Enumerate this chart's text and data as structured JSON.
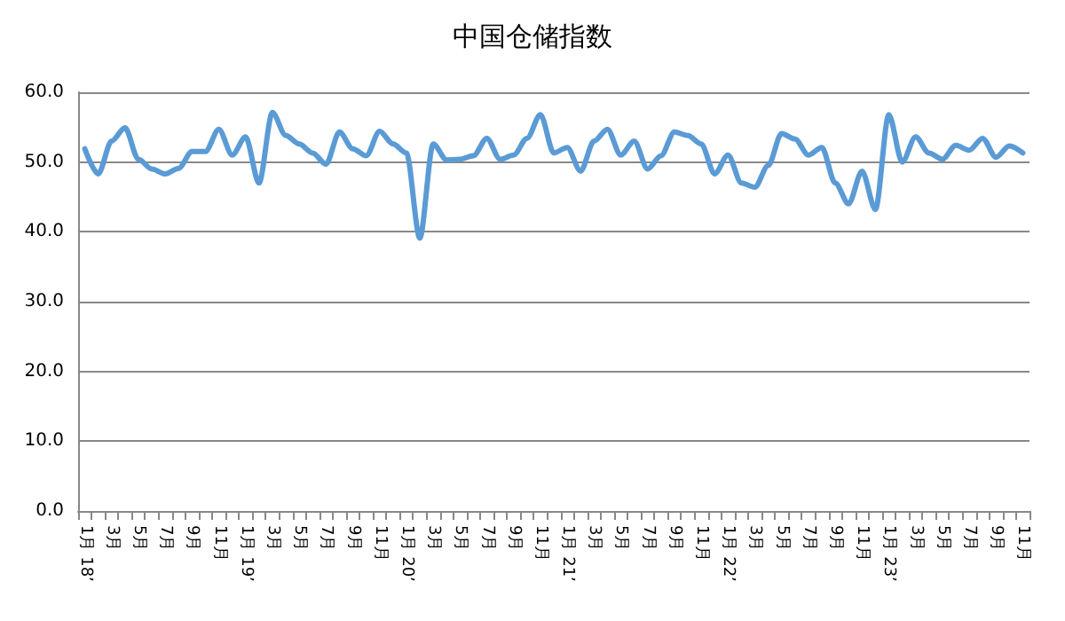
{
  "chart_data": {
    "type": "line",
    "title": "中国仓储指数",
    "categories": [
      "1月 18’",
      null,
      "3月",
      null,
      "5月",
      null,
      "7月",
      null,
      "9月",
      null,
      "11月",
      null,
      "1月 19’",
      null,
      "3月",
      null,
      "5月",
      null,
      "7月",
      null,
      "9月",
      null,
      "11月",
      null,
      "1月 20’",
      null,
      "3月",
      null,
      "5月",
      null,
      "7月",
      null,
      "9月",
      null,
      "11月",
      null,
      "1月 21’",
      null,
      "3月",
      null,
      "5月",
      null,
      "7月",
      null,
      "9月",
      null,
      "11月",
      null,
      "1月 22’",
      null,
      "3月",
      null,
      "5月",
      null,
      "7月",
      null,
      "9月",
      null,
      "11月",
      null,
      "1月 23’",
      null,
      "3月",
      null,
      "5月",
      null,
      "7月",
      null,
      "9月",
      null,
      "11月"
    ],
    "series": [
      {
        "color": "#5b9bd5",
        "values": [
          51.9,
          48.3,
          53,
          54.9,
          50.4,
          49,
          48.3,
          49.1,
          51.5,
          51.5,
          54.7,
          51,
          53.6,
          47,
          57.1,
          53.8,
          52.6,
          51.3,
          49.7,
          54.3,
          51.9,
          50.9,
          54.4,
          52.6,
          51.3,
          39.1,
          52.6,
          50.3,
          50.4,
          50.9,
          53.4,
          50.4,
          51,
          53.4,
          56.8,
          51.3,
          52.1,
          48.7,
          53,
          54.7,
          51,
          53,
          49,
          50.9,
          54.3,
          53.8,
          52.6,
          48.3,
          51,
          47,
          46.4,
          49.5,
          54.1,
          53.3,
          51,
          52.1,
          47,
          44,
          48.7,
          43.2,
          56.8,
          50,
          53.6,
          51.3,
          50.4,
          52.4,
          51.7,
          53.4,
          50.7,
          52.3,
          51.3
        ]
      }
    ],
    "ylim": [
      0,
      60
    ],
    "yticks": [
      {
        "value": 0,
        "label": "0.0"
      },
      {
        "value": 10,
        "label": "10.0"
      },
      {
        "value": 20,
        "label": "20.0"
      },
      {
        "value": 30,
        "label": "30.0"
      },
      {
        "value": 40,
        "label": "40.0"
      },
      {
        "value": 50,
        "label": "50.0"
      },
      {
        "value": 60,
        "label": "60.0"
      }
    ],
    "grid": "y",
    "marker": "none",
    "line_style": "solid"
  }
}
